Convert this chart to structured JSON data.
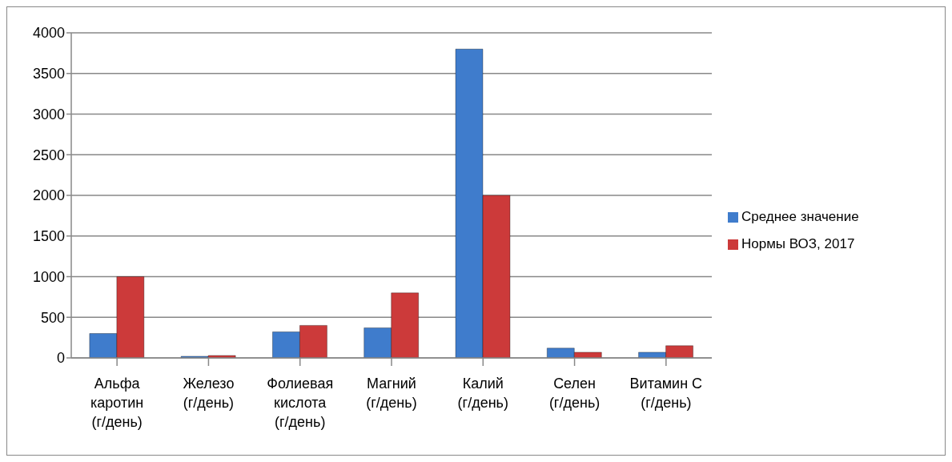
{
  "chart_data": {
    "type": "bar",
    "categories": [
      "Альфа каротин (г/день)",
      "Железо (г/день)",
      "Фолиевая кислота (г/день)",
      "Магний (г/день)",
      "Калий (г/день)",
      "Селен (г/день)",
      "Витамин С (г/день)"
    ],
    "series": [
      {
        "name": "Среднее значение",
        "color": "#3f7ccc",
        "values": [
          300,
          20,
          320,
          370,
          3800,
          120,
          70
        ]
      },
      {
        "name": "Нормы ВОЗ, 2017",
        "color": "#cc3a3a",
        "values": [
          1000,
          30,
          400,
          800,
          2000,
          70,
          150
        ]
      }
    ],
    "ylim": [
      0,
      4000
    ],
    "yticks": [
      0,
      500,
      1000,
      1500,
      2000,
      2500,
      3000,
      3500,
      4000
    ],
    "grid": "y",
    "legend": "right"
  }
}
